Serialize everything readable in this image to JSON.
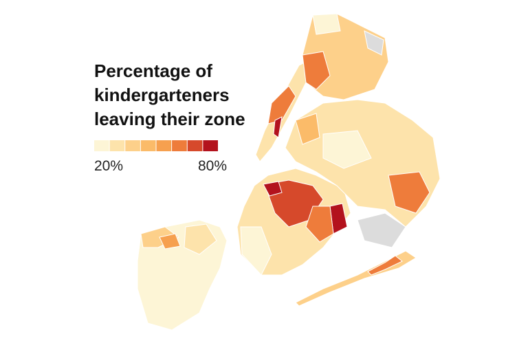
{
  "title": [
    "Percentage of",
    "kindergarteners",
    "leaving their zone"
  ],
  "legend": {
    "colors": [
      "#fdf5d6",
      "#fde3ab",
      "#fdd08a",
      "#fbbb69",
      "#f6a04f",
      "#ee7c3b",
      "#d6492b",
      "#b3121d"
    ],
    "labels": [
      "20%",
      "80%"
    ]
  }
}
